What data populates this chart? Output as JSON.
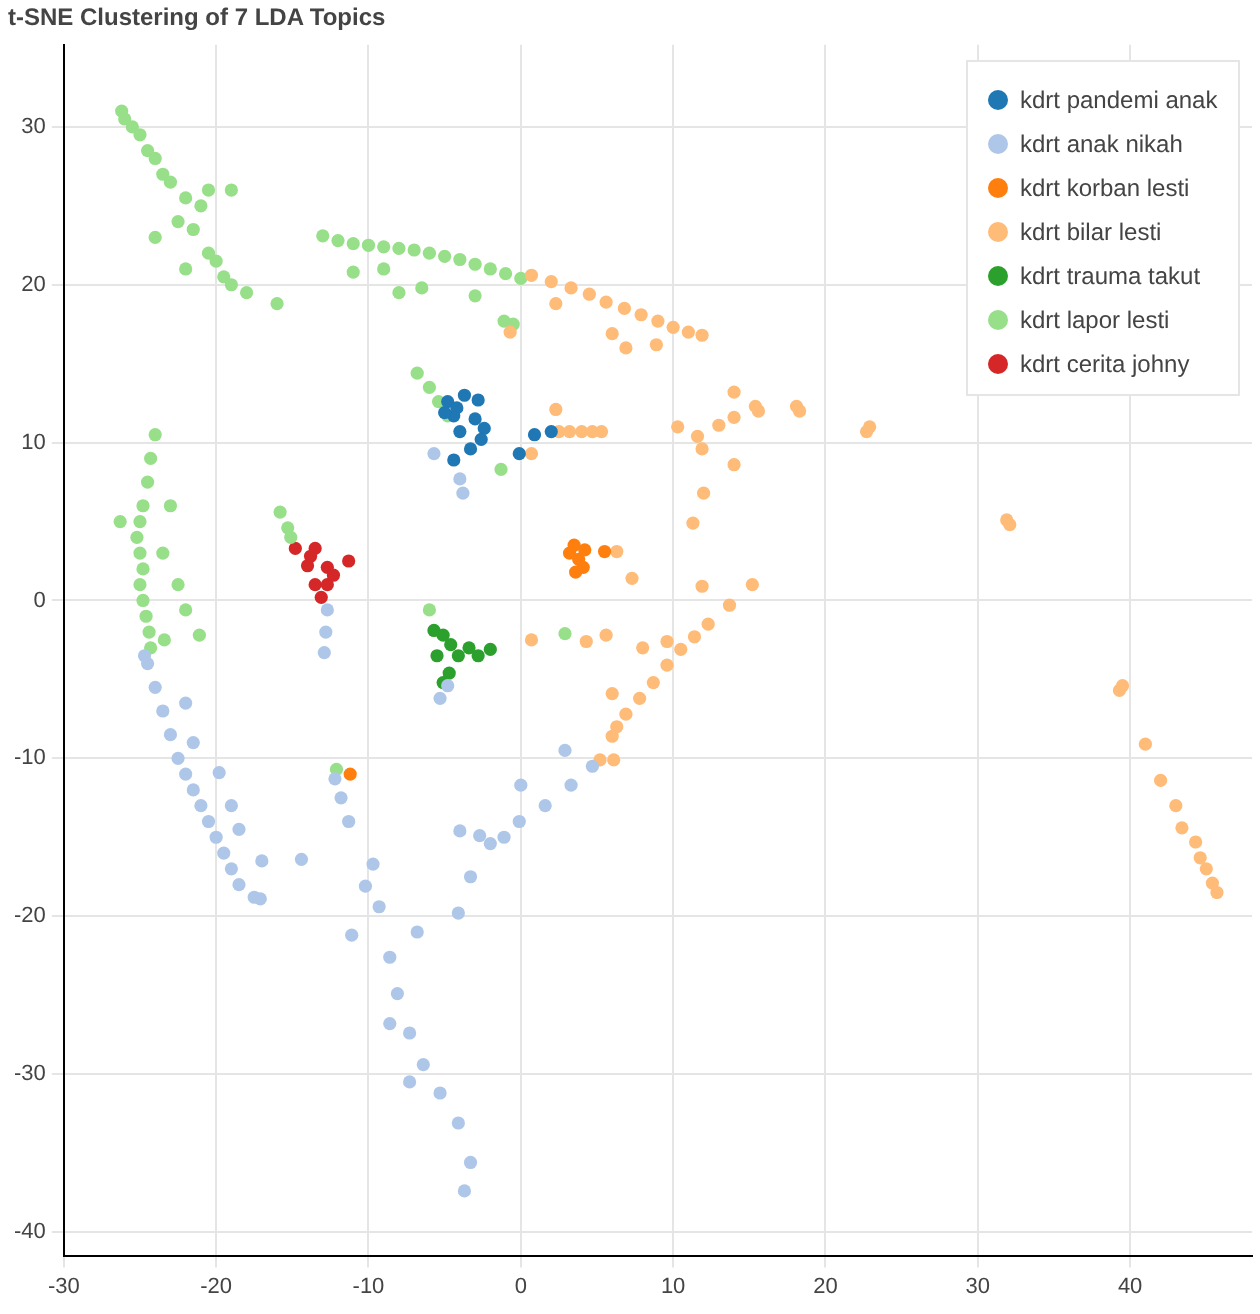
{
  "chart_data": {
    "type": "scatter",
    "title": "t-SNE Clustering of 7 LDA Topics",
    "xlim": [
      -30,
      48
    ],
    "ylim": [
      -41.5,
      35.2
    ],
    "xticks": [
      -30,
      -20,
      -10,
      0,
      10,
      20,
      30,
      40
    ],
    "yticks": [
      -40,
      -30,
      -20,
      -10,
      0,
      10,
      20,
      30
    ],
    "grid": true,
    "legend": "top right",
    "marker": "circle",
    "series": [
      {
        "name": "kdrt pandemi anak",
        "color": "#1f77b4",
        "x": [
          -4.8,
          -3.7,
          -2.8,
          -4.4,
          -2.4,
          -3.3,
          -4.4,
          -4.0,
          0.9,
          2.0,
          -0.1,
          -3.0,
          -2.6,
          -4.2,
          -5.0
        ],
        "values": [
          12.6,
          13.0,
          12.7,
          11.7,
          10.9,
          9.6,
          8.9,
          10.7,
          10.5,
          10.7,
          9.3,
          11.5,
          10.2,
          12.2,
          11.9
        ]
      },
      {
        "name": "kdrt anak nikah",
        "color": "#aec7e8",
        "x": [
          -4.0,
          -5.7,
          -3.8,
          -12.7,
          -12.8,
          -12.9,
          -24.7,
          -24.5,
          -24.0,
          -23.5,
          -23.0,
          -22.5,
          -22.0,
          -21.5,
          -21.0,
          -20.5,
          -20.0,
          -19.5,
          -19.0,
          -18.5,
          -17.5,
          -17.1,
          -22.0,
          -21.5,
          -19.8,
          -19.0,
          -18.5,
          -17.0,
          -14.4,
          -12.2,
          -11.8,
          -11.3,
          -9.7,
          -9.3,
          -8.6,
          -8.1,
          -7.3,
          -6.4,
          -5.3,
          -4.1,
          -3.3,
          -3.7,
          -11.1,
          -10.2,
          -7.3,
          -6.8,
          -8.6,
          -4.1,
          -3.3,
          -2.0,
          -0.1,
          1.6,
          3.3,
          4.7,
          -1.1,
          -4.0,
          -2.7,
          0.0,
          2.9,
          -5.3,
          -4.8
        ],
        "values": [
          7.7,
          9.3,
          6.8,
          -0.6,
          -2.0,
          -3.3,
          -3.5,
          -4.0,
          -5.5,
          -7.0,
          -8.5,
          -10.0,
          -11.0,
          -12.0,
          -13.0,
          -14.0,
          -15.0,
          -16.0,
          -17.0,
          -18.0,
          -18.8,
          -18.9,
          -6.5,
          -9.0,
          -10.9,
          -13.0,
          -14.5,
          -16.5,
          -16.4,
          -11.3,
          -12.5,
          -14.0,
          -16.7,
          -19.4,
          -22.6,
          -24.9,
          -27.4,
          -29.4,
          -31.2,
          -33.1,
          -35.6,
          -37.4,
          -21.2,
          -18.1,
          -30.5,
          -21.0,
          -26.8,
          -19.8,
          -17.5,
          -15.4,
          -14.0,
          -13.0,
          -11.7,
          -10.5,
          -15.0,
          -14.6,
          -14.9,
          -11.7,
          -9.5,
          -6.2,
          -5.4
        ]
      },
      {
        "name": "kdrt korban lesti",
        "color": "#ff7f0e",
        "x": [
          3.5,
          3.8,
          4.2,
          3.6,
          4.1,
          5.5,
          3.2,
          -11.2
        ],
        "values": [
          3.5,
          2.6,
          3.2,
          1.8,
          2.1,
          3.1,
          3.0,
          -11.0
        ]
      },
      {
        "name": "kdrt bilar lesti",
        "color": "#ffbb78",
        "x": [
          0.7,
          2.0,
          3.3,
          4.5,
          5.6,
          6.8,
          7.9,
          9.0,
          10.0,
          11.0,
          11.9,
          2.3,
          6.0,
          6.9,
          8.9,
          -0.7,
          2.5,
          3.2,
          4.0,
          4.7,
          5.3,
          2.3,
          0.7,
          10.3,
          11.6,
          13.0,
          14.0,
          14.0,
          11.9,
          14.0,
          12.0,
          11.3,
          7.3,
          6.3,
          15.6,
          15.4,
          18.3,
          18.1,
          22.7,
          22.9,
          31.9,
          32.1,
          5.2,
          6.0,
          6.9,
          7.8,
          8.7,
          9.6,
          10.5,
          11.4,
          12.3,
          13.7,
          15.2,
          6.0,
          6.3,
          6.1,
          11.9,
          0.7,
          4.3,
          5.6,
          8.0,
          9.6,
          39.3,
          39.5,
          41.0,
          42.0,
          43.0,
          43.4,
          44.3,
          44.6,
          45.0,
          45.4,
          45.7
        ],
        "values": [
          20.6,
          20.2,
          19.8,
          19.4,
          18.9,
          18.5,
          18.1,
          17.7,
          17.3,
          17.0,
          16.8,
          18.8,
          16.9,
          16.0,
          16.2,
          17.0,
          10.7,
          10.7,
          10.7,
          10.7,
          10.7,
          12.1,
          9.3,
          11.0,
          10.4,
          11.1,
          11.6,
          13.2,
          9.6,
          8.6,
          6.8,
          4.9,
          1.4,
          3.1,
          12.0,
          12.3,
          12.0,
          12.3,
          10.7,
          11.0,
          5.1,
          4.8,
          -10.1,
          -8.6,
          -7.2,
          -6.2,
          -5.2,
          -4.1,
          -3.1,
          -2.3,
          -1.5,
          -0.3,
          1.0,
          -5.9,
          -8.0,
          -10.1,
          0.9,
          -2.5,
          -2.6,
          -2.2,
          -3.0,
          -2.6,
          -5.7,
          -5.4,
          -9.1,
          -11.4,
          -13.0,
          -14.4,
          -15.3,
          -16.3,
          -17.0,
          -17.9,
          -18.5
        ]
      },
      {
        "name": "kdrt trauma takut",
        "color": "#2ca02c",
        "x": [
          -5.1,
          -5.5,
          -4.1,
          -2.8,
          -2.0,
          -4.7,
          -5.1,
          -5.7,
          -3.4,
          -4.6
        ],
        "values": [
          -2.2,
          -3.5,
          -3.5,
          -3.5,
          -3.1,
          -4.6,
          -5.2,
          -1.9,
          -3.0,
          -2.8
        ]
      },
      {
        "name": "kdrt lapor lesti",
        "color": "#98df8a",
        "x": [
          -26.2,
          -26.0,
          -25.5,
          -25.0,
          -24.5,
          -24.0,
          -23.5,
          -23.0,
          -22.0,
          -21.0,
          -22.5,
          -21.5,
          -20.5,
          -20.0,
          -19.5,
          -19.0,
          -18.0,
          -16.0,
          -22.0,
          -24.0,
          -20.5,
          -19.0,
          -13.0,
          -12.0,
          -11.0,
          -10.0,
          -9.0,
          -8.0,
          -7.0,
          -6.0,
          -5.0,
          -4.0,
          -3.0,
          -2.0,
          -1.0,
          0.0,
          -11.0,
          -9.0,
          -8.0,
          -6.5,
          -3.0,
          -0.5,
          -24.0,
          -24.3,
          -24.5,
          -24.8,
          -25.0,
          -25.2,
          -25.0,
          -24.8,
          -25.0,
          -24.8,
          -24.6,
          -24.4,
          -24.3,
          -26.3,
          -23.0,
          -23.5,
          -22.5,
          -22.0,
          -23.4,
          -21.1,
          -15.8,
          -15.3,
          -15.1,
          -6.8,
          -6.0,
          -5.4,
          -4.8,
          -1.3,
          -1.1,
          -12.1,
          -6.0,
          2.9
        ],
        "values": [
          31.0,
          30.5,
          30.0,
          29.5,
          28.5,
          28.0,
          27.0,
          26.5,
          25.5,
          25.0,
          24.0,
          23.5,
          22.0,
          21.5,
          20.5,
          20.0,
          19.5,
          18.8,
          21.0,
          23.0,
          26.0,
          26.0,
          23.1,
          22.8,
          22.6,
          22.5,
          22.4,
          22.3,
          22.2,
          22.0,
          21.8,
          21.6,
          21.3,
          21.0,
          20.7,
          20.4,
          20.8,
          21.0,
          19.5,
          19.8,
          19.3,
          17.5,
          10.5,
          9.0,
          7.5,
          6.0,
          5.0,
          4.0,
          3.0,
          2.0,
          1.0,
          0.0,
          -1.0,
          -2.0,
          -3.0,
          5.0,
          6.0,
          3.0,
          1.0,
          -0.6,
          -2.5,
          -2.2,
          5.6,
          4.6,
          4.0,
          14.4,
          13.5,
          12.6,
          11.7,
          8.3,
          17.7,
          -10.7,
          -0.6,
          -2.1
        ]
      },
      {
        "name": "kdrt cerita johny",
        "color": "#d62728",
        "x": [
          -14.8,
          -13.5,
          -14.0,
          -12.7,
          -11.3,
          -13.5,
          -12.7,
          -13.1,
          -12.3,
          -13.8
        ],
        "values": [
          3.3,
          3.3,
          2.2,
          2.1,
          2.5,
          1.0,
          1.0,
          0.2,
          1.6,
          2.8
        ]
      }
    ]
  }
}
